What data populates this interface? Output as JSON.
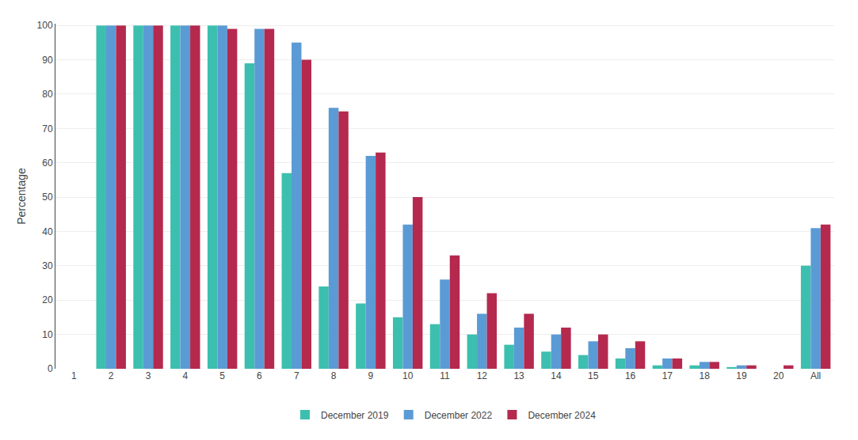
{
  "chart_data": {
    "type": "bar",
    "categories": [
      "1",
      "2",
      "3",
      "4",
      "5",
      "6",
      "7",
      "8",
      "9",
      "10",
      "11",
      "12",
      "13",
      "14",
      "15",
      "16",
      "17",
      "18",
      "19",
      "20",
      "All"
    ],
    "series": [
      {
        "name": "December 2019",
        "color": "#3dbfaf",
        "values": [
          0,
          100,
          100,
          100,
          100,
          89,
          57,
          24,
          19,
          15,
          13,
          10,
          7,
          5,
          4,
          3,
          1,
          1,
          0.5,
          0,
          30
        ]
      },
      {
        "name": "December 2022",
        "color": "#5b9bd5",
        "values": [
          0,
          100,
          100,
          100,
          100,
          99,
          95,
          76,
          62,
          42,
          26,
          16,
          12,
          10,
          8,
          6,
          3,
          2,
          1,
          0,
          41
        ]
      },
      {
        "name": "December 2024",
        "color": "#b5294e",
        "values": [
          0,
          100,
          100,
          100,
          99,
          99,
          90,
          75,
          63,
          50,
          33,
          22,
          16,
          12,
          10,
          8,
          3,
          2,
          1,
          1,
          42
        ]
      }
    ],
    "ylabel": "Percentage",
    "ylim": [
      0,
      100.5
    ],
    "yticks": [
      0,
      10,
      20,
      30,
      40,
      50,
      60,
      70,
      80,
      90,
      100
    ],
    "grid": true,
    "legend": "bottom"
  }
}
